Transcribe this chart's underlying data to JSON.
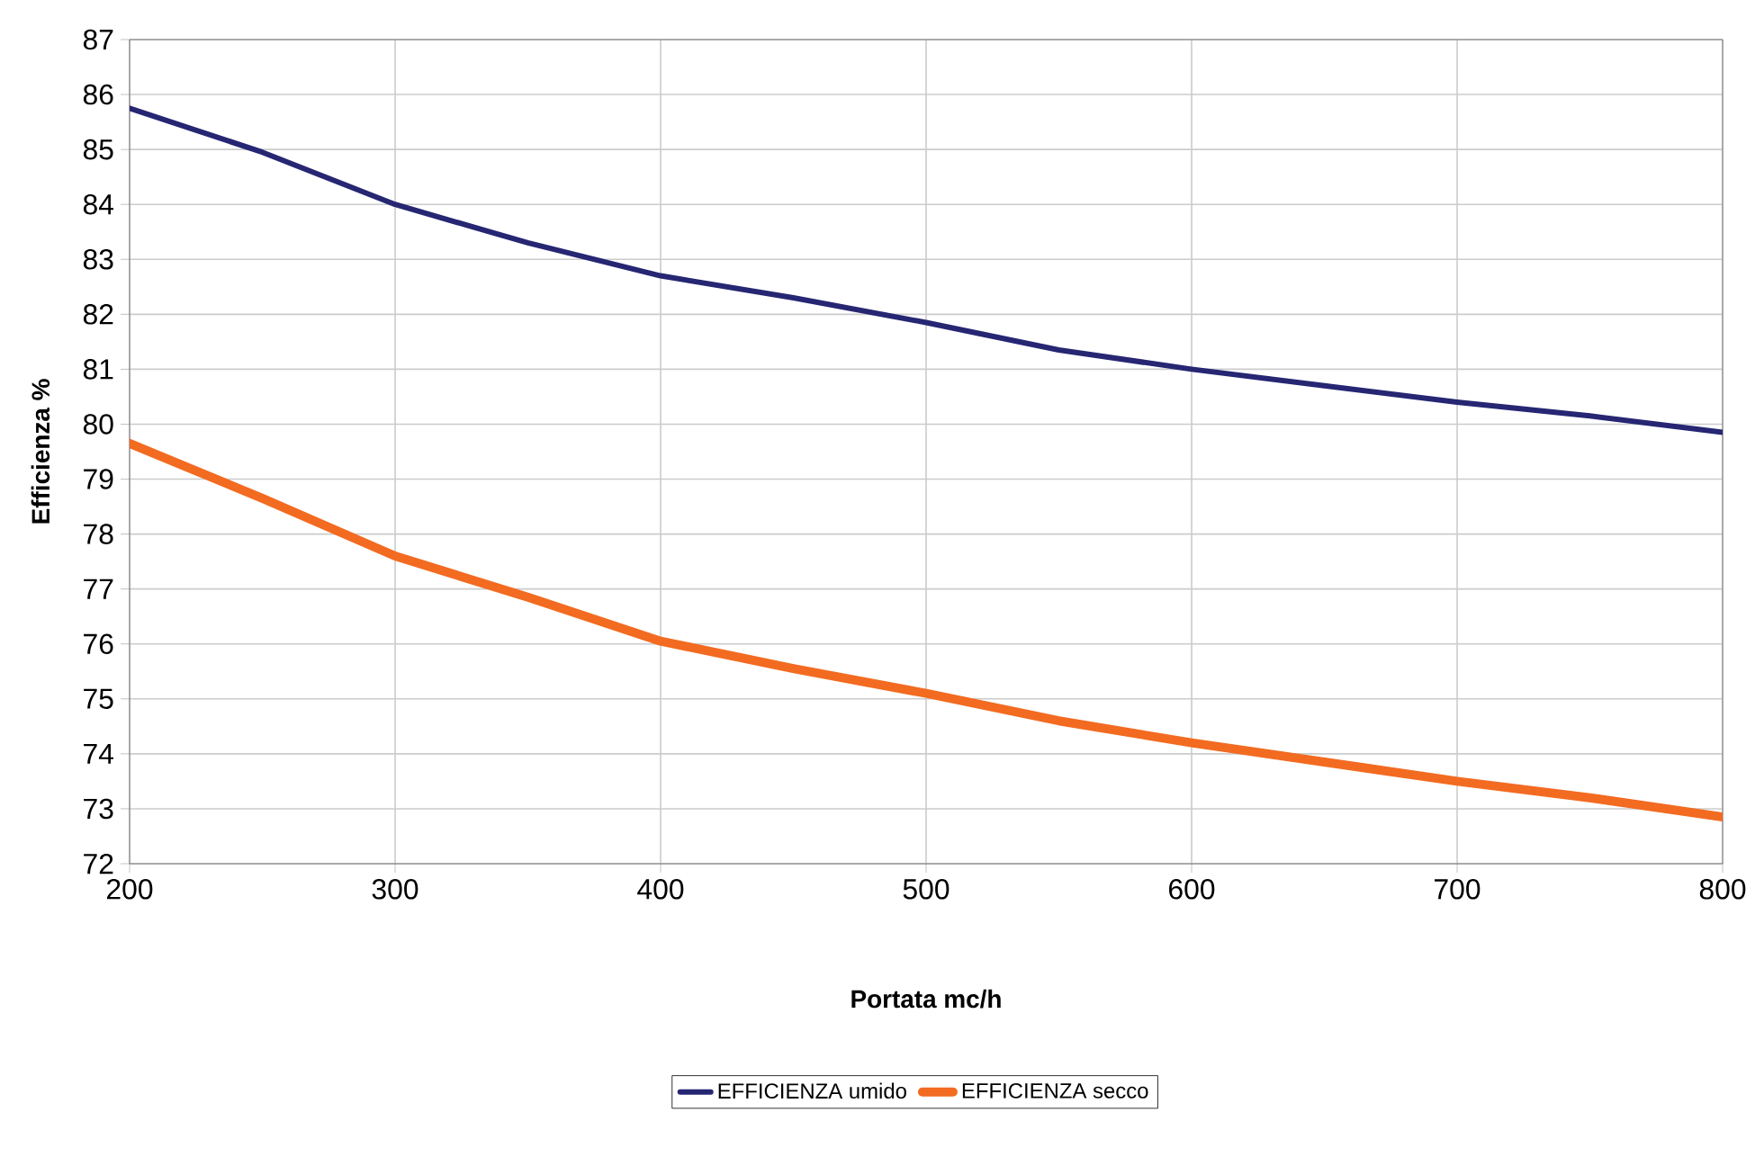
{
  "chart_data": {
    "type": "line",
    "xlabel": "Portata mc/h",
    "ylabel": "Efficienza %",
    "x": [
      200,
      250,
      300,
      350,
      400,
      450,
      500,
      550,
      600,
      650,
      700,
      750,
      800
    ],
    "series": [
      {
        "name": "EFFICIENZA umido",
        "color": "#262673",
        "values": [
          85.75,
          84.95,
          84.0,
          83.3,
          82.7,
          82.3,
          81.85,
          81.35,
          81.0,
          80.7,
          80.4,
          80.15,
          79.85
        ]
      },
      {
        "name": "EFFICIENZA secco",
        "color": "#f26b21",
        "values": [
          79.65,
          78.65,
          77.6,
          76.85,
          76.05,
          75.55,
          75.1,
          74.6,
          74.2,
          73.85,
          73.5,
          73.2,
          72.85
        ]
      }
    ],
    "xlim": [
      200,
      800
    ],
    "ylim": [
      72,
      87
    ],
    "xticks": [
      200,
      300,
      400,
      500,
      600,
      700,
      800
    ],
    "yticks": [
      72,
      73,
      74,
      75,
      76,
      77,
      78,
      79,
      80,
      81,
      82,
      83,
      84,
      85,
      86,
      87
    ],
    "grid": true,
    "legend": "bottom"
  }
}
